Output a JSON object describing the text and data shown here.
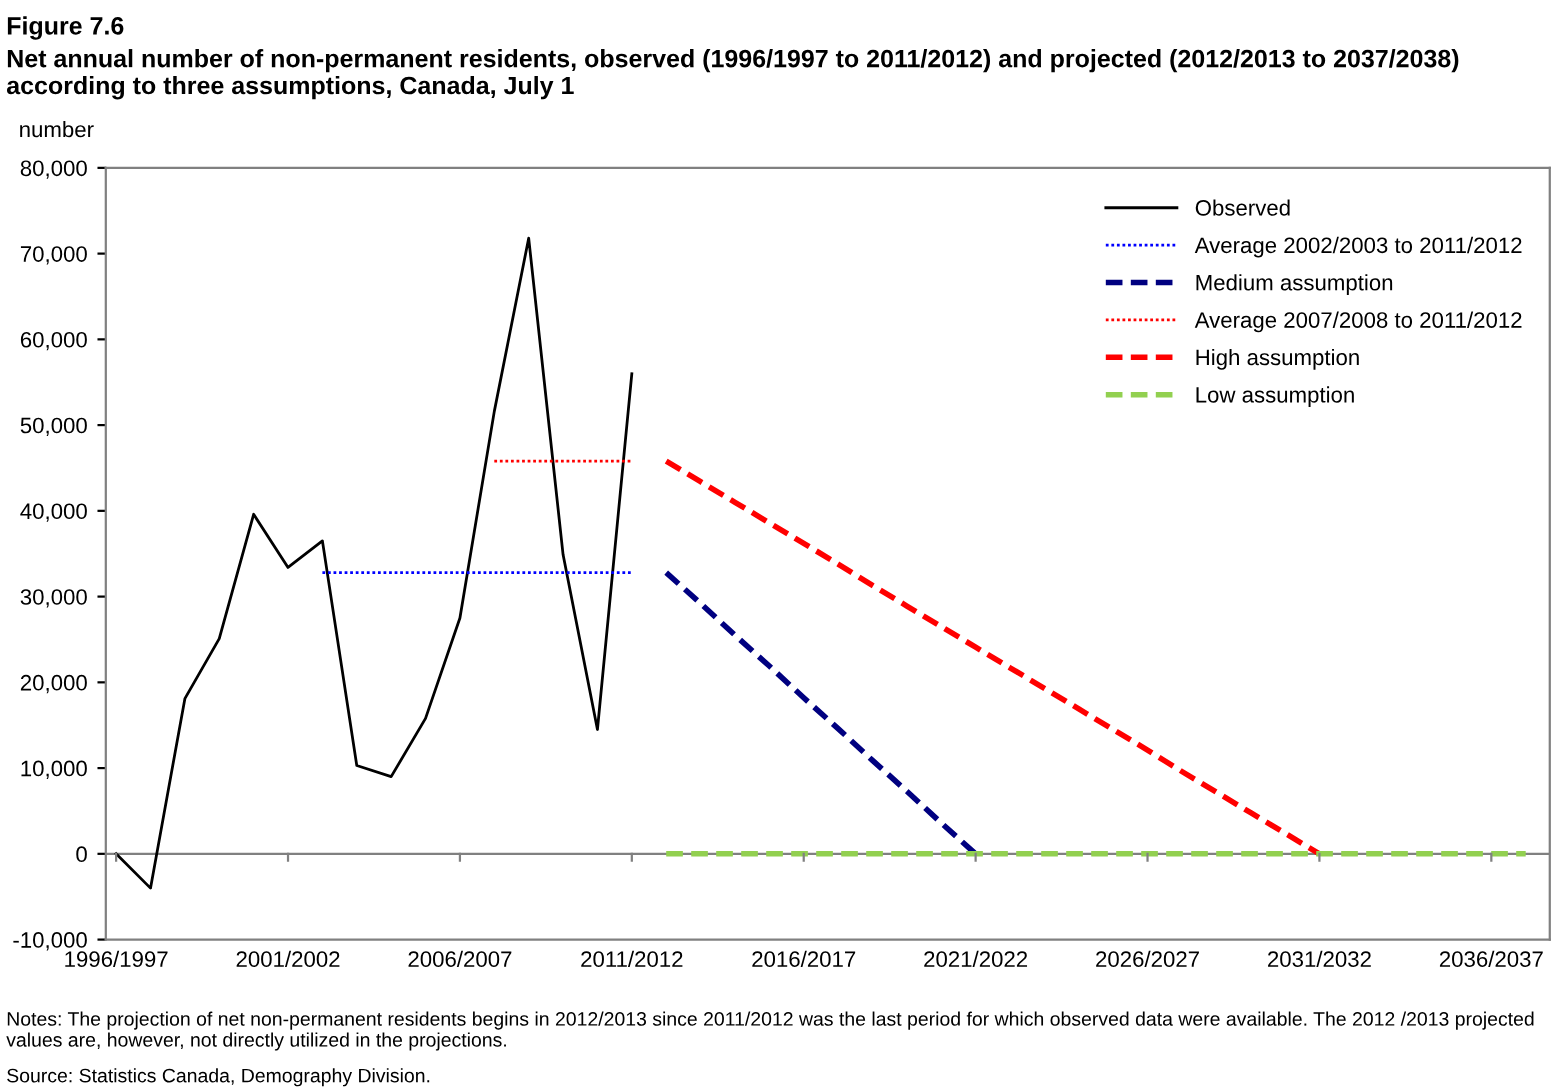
{
  "chart_data": {
    "type": "line",
    "title": "Figure 7.6",
    "subtitle": "Net annual number of non-permanent residents, observed (1996/1997 to 2011/2012) and projected (2012/2013 to 2037/2038) according to three assumptions, Canada, July 1",
    "ylabel": "number",
    "categories": [
      "1996/1997",
      null,
      null,
      null,
      null,
      "2001/2002",
      null,
      null,
      null,
      null,
      "2006/2007",
      null,
      null,
      null,
      null,
      "2011/2012",
      null,
      null,
      null,
      null,
      "2016/2017",
      null,
      null,
      null,
      null,
      "2021/2022",
      null,
      null,
      null,
      null,
      "2026/2027",
      null,
      null,
      null,
      null,
      "2031/2032",
      null,
      null,
      null,
      null,
      "2036/2037",
      null
    ],
    "series": [
      {
        "name": "Observed",
        "color": "#000000",
        "line_style": "solid",
        "values": [
          0,
          -4000,
          18100,
          25100,
          39600,
          33400,
          36500,
          10300,
          9000,
          15800,
          27500,
          51600,
          71800,
          34900,
          14500,
          56000,
          null,
          null,
          null,
          null,
          null,
          null,
          null,
          null,
          null,
          null,
          null,
          null,
          null,
          null,
          null,
          null,
          null,
          null,
          null,
          null,
          null,
          null,
          null,
          null,
          null,
          null
        ]
      },
      {
        "name": "Average 2002/2003 to 2011/2012",
        "color": "#0000ff",
        "line_style": "dotted",
        "values": [
          null,
          null,
          null,
          null,
          null,
          null,
          32800,
          32800,
          32800,
          32800,
          32800,
          32800,
          32800,
          32800,
          32800,
          32800,
          null,
          null,
          null,
          null,
          null,
          null,
          null,
          null,
          null,
          null,
          null,
          null,
          null,
          null,
          null,
          null,
          null,
          null,
          null,
          null,
          null,
          null,
          null,
          null,
          null,
          null
        ]
      },
      {
        "name": "Medium assumption",
        "color": "#000080",
        "line_style": "dashed",
        "values": [
          null,
          null,
          null,
          null,
          null,
          null,
          null,
          null,
          null,
          null,
          null,
          null,
          null,
          null,
          null,
          null,
          32800,
          29200,
          25500,
          21900,
          18200,
          14600,
          10900,
          7300,
          3600,
          0,
          null,
          null,
          null,
          null,
          null,
          null,
          null,
          null,
          null,
          null,
          null,
          null,
          null,
          null,
          null,
          null
        ]
      },
      {
        "name": "Average 2007/2008 to 2011/2012",
        "color": "#ff0000",
        "line_style": "dotted",
        "values": [
          null,
          null,
          null,
          null,
          null,
          null,
          null,
          null,
          null,
          null,
          null,
          45800,
          45800,
          45800,
          45800,
          45800,
          null,
          null,
          null,
          null,
          null,
          null,
          null,
          null,
          null,
          null,
          null,
          null,
          null,
          null,
          null,
          null,
          null,
          null,
          null,
          null,
          null,
          null,
          null,
          null,
          null,
          null
        ]
      },
      {
        "name": "High assumption",
        "color": "#ff0000",
        "line_style": "dashed",
        "values": [
          null,
          null,
          null,
          null,
          null,
          null,
          null,
          null,
          null,
          null,
          null,
          null,
          null,
          null,
          null,
          null,
          45800,
          43400,
          41000,
          38600,
          36200,
          33800,
          31300,
          28900,
          26500,
          24100,
          21700,
          19300,
          16900,
          14500,
          12100,
          9600,
          7200,
          4800,
          2400,
          0,
          null,
          null,
          null,
          null,
          null,
          null
        ]
      },
      {
        "name": "Low assumption",
        "color": "#92d050",
        "line_style": "dashed",
        "values": [
          null,
          null,
          null,
          null,
          null,
          null,
          null,
          null,
          null,
          null,
          null,
          null,
          null,
          null,
          null,
          null,
          0,
          0,
          0,
          0,
          0,
          0,
          0,
          0,
          0,
          0,
          0,
          0,
          0,
          0,
          0,
          0,
          0,
          0,
          0,
          0,
          0,
          0,
          0,
          0,
          0,
          0
        ]
      }
    ],
    "ylim": [
      -10000,
      80000
    ],
    "yticks": [
      {
        "value": -10000,
        "label": "-10,000"
      },
      {
        "value": 0,
        "label": "0"
      },
      {
        "value": 10000,
        "label": "10,000"
      },
      {
        "value": 20000,
        "label": "20,000"
      },
      {
        "value": 30000,
        "label": "30,000"
      },
      {
        "value": 40000,
        "label": "40,000"
      },
      {
        "value": 50000,
        "label": "50,000"
      },
      {
        "value": 60000,
        "label": "60,000"
      },
      {
        "value": 70000,
        "label": "70,000"
      },
      {
        "value": 80000,
        "label": "80,000"
      }
    ],
    "ref_lines": [
      {
        "axis": "y",
        "value": 0,
        "color": "#808080"
      }
    ],
    "grid": false,
    "legend": "top right",
    "marker": "none",
    "annotations": [
      "Notes: The projection of net non-permanent residents begins in 2012/2013 since 2011/2012 was the last period for which observed data were available. The 2012 /2013 projected values are, however, not directly utilized in the projections.",
      "Source: Statistics Canada, Demography Division."
    ]
  }
}
